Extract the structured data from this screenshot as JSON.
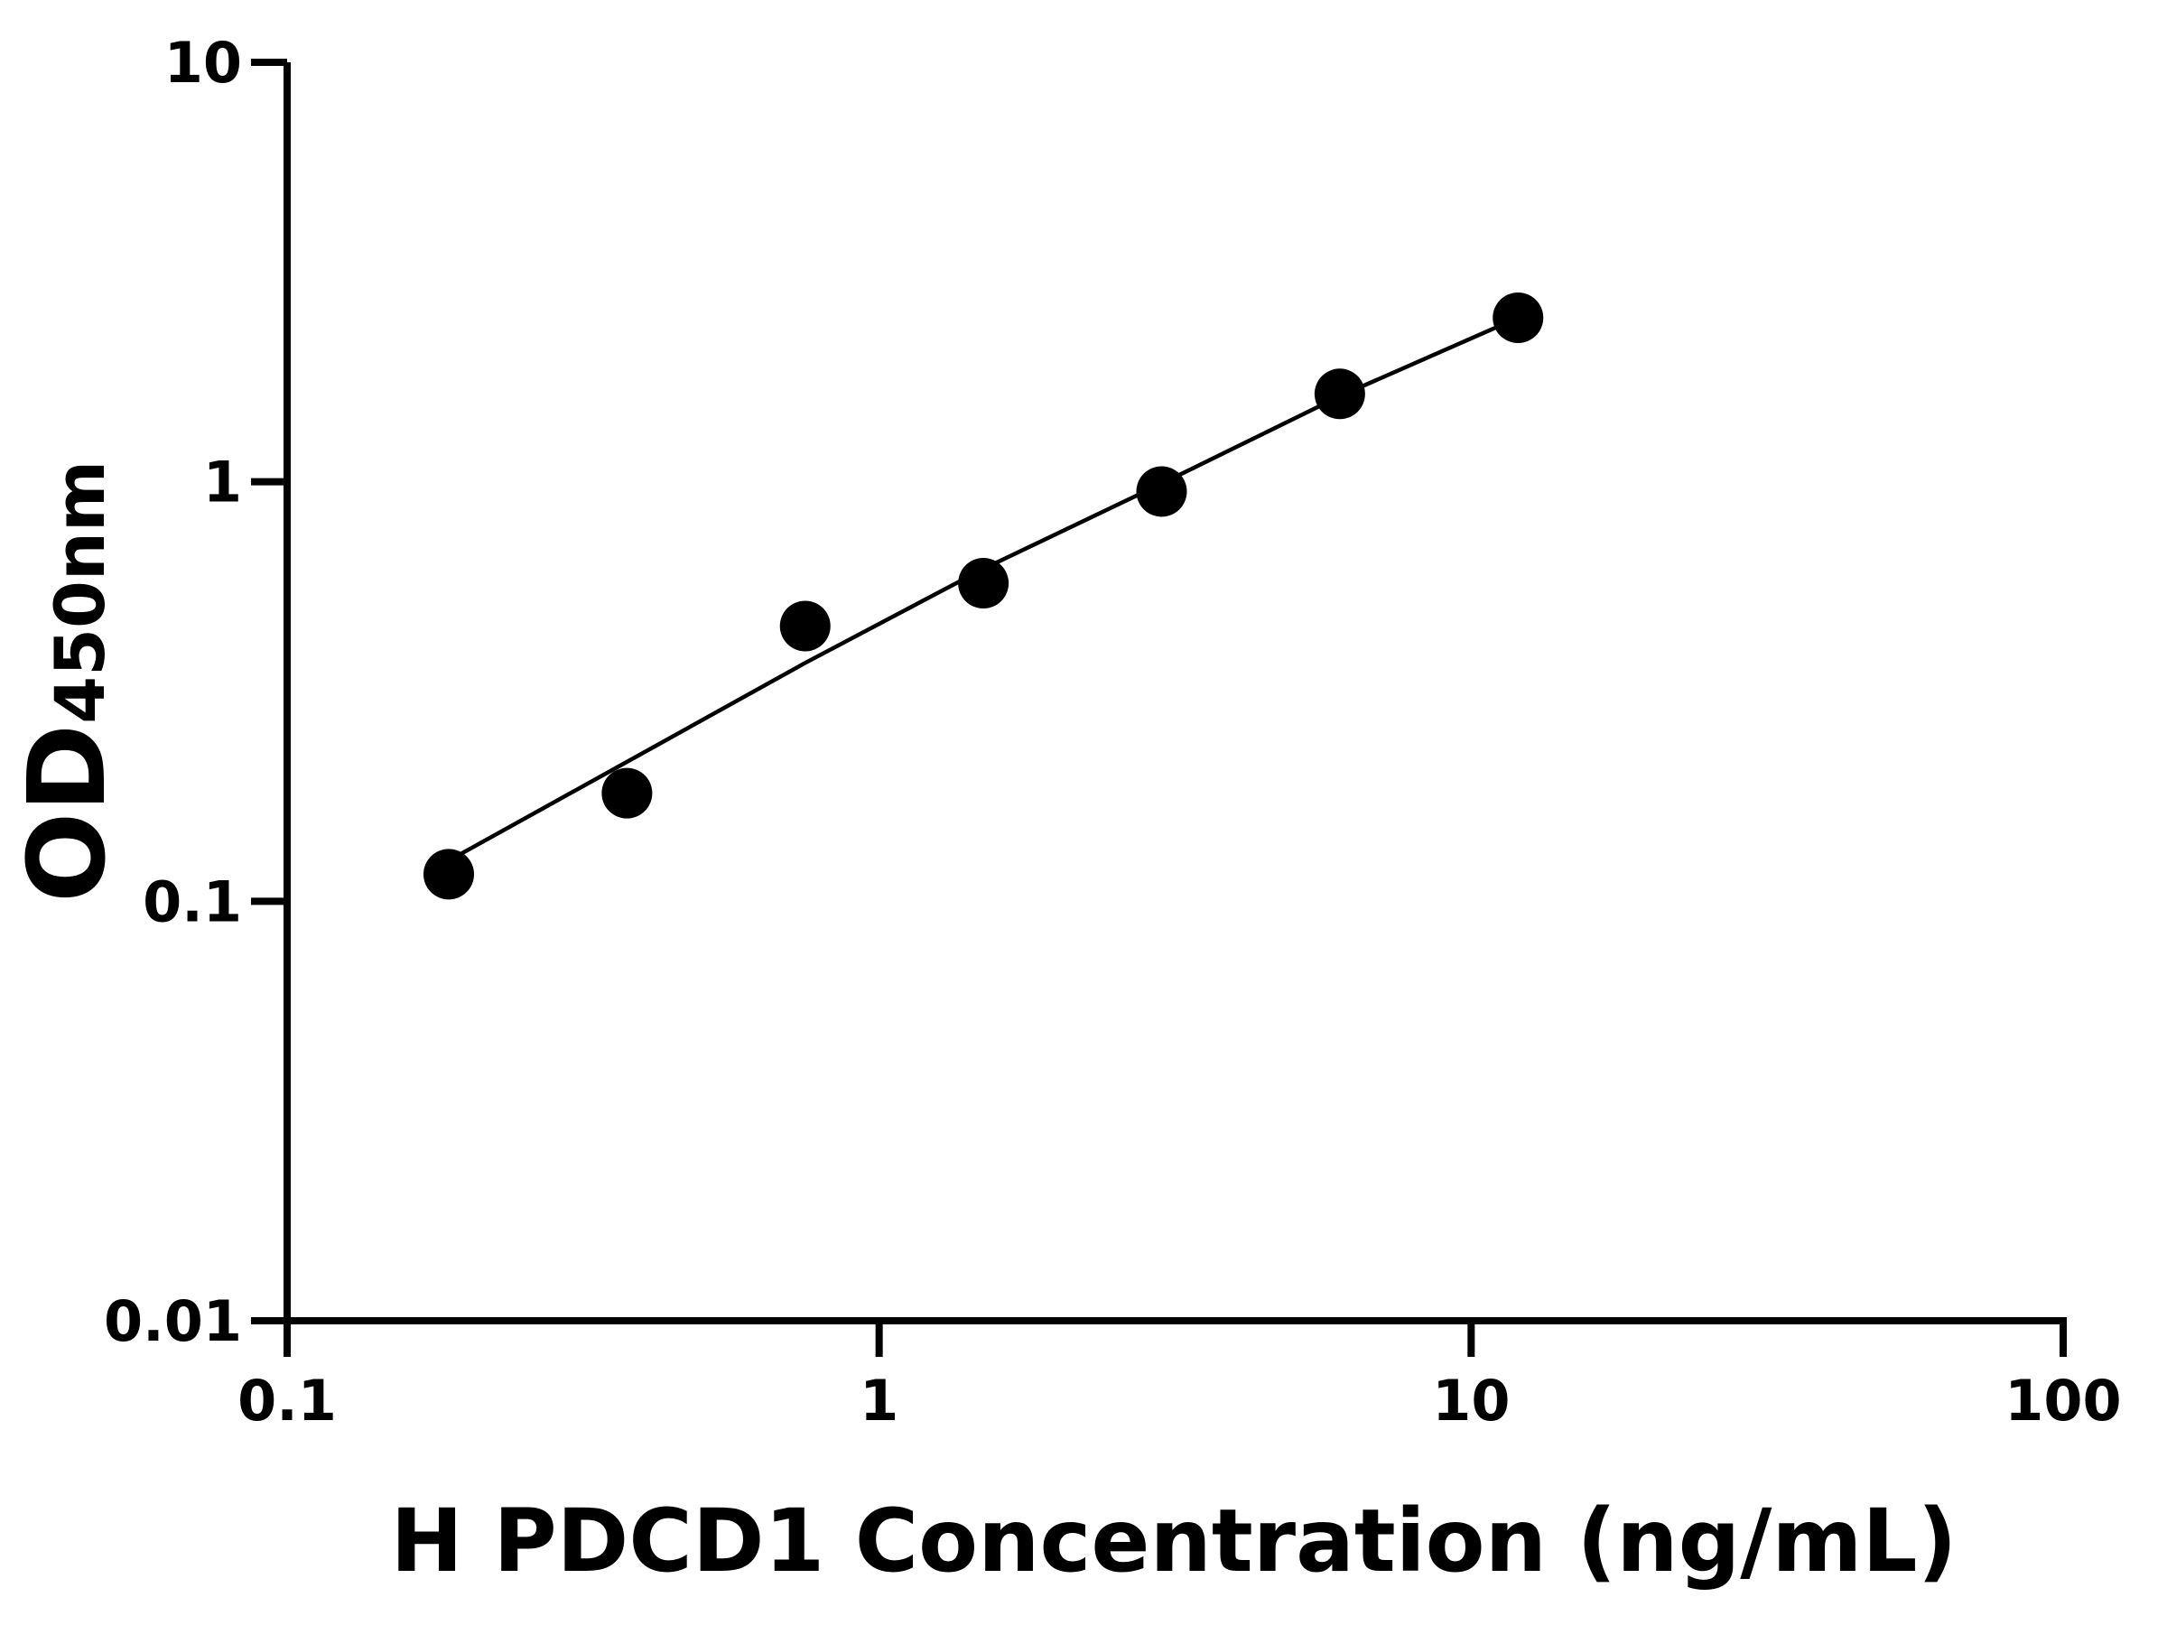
{
  "chart_data": {
    "type": "scatter",
    "xlabel": "H PDCD1 Concentration (ng/mL)",
    "ylabel_main": "OD",
    "ylabel_sub": "450nm",
    "x_scale": "log",
    "y_scale": "log",
    "xlim": [
      0.1,
      100
    ],
    "ylim": [
      0.01,
      10
    ],
    "x_ticks": [
      0.1,
      1,
      10,
      100
    ],
    "x_tick_labels": [
      "0.1",
      "1",
      "10",
      "100"
    ],
    "y_ticks": [
      0.01,
      0.1,
      1,
      10
    ],
    "y_tick_labels": [
      "0.01",
      "0.1",
      "1",
      "10"
    ],
    "grid": false,
    "legend": "none",
    "series": [
      {
        "x": [
          0.1875,
          0.375,
          0.75,
          1.5,
          3,
          6,
          12
        ],
        "y": [
          0.116,
          0.181,
          0.453,
          0.573,
          0.948,
          1.62,
          2.46
        ],
        "marker": "circle",
        "color": "#000000"
      }
    ],
    "fit_curve": {
      "x": [
        0.1875,
        0.375,
        0.75,
        1.5,
        3,
        6,
        12
      ],
      "y": [
        0.125,
        0.215,
        0.37,
        0.62,
        0.99,
        1.6,
        2.46
      ],
      "color": "#000000"
    }
  }
}
